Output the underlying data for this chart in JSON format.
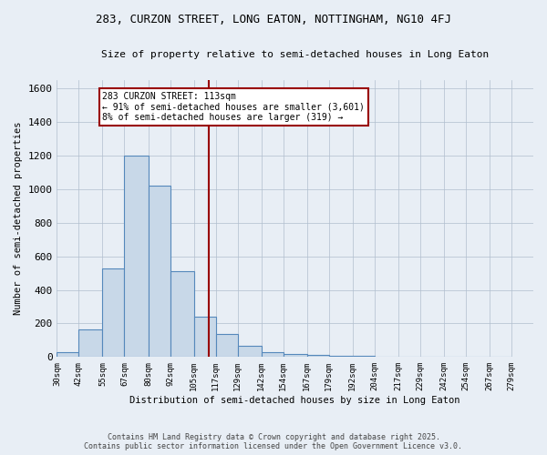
{
  "title1": "283, CURZON STREET, LONG EATON, NOTTINGHAM, NG10 4FJ",
  "title2": "Size of property relative to semi-detached houses in Long Eaton",
  "xlabel": "Distribution of semi-detached houses by size in Long Eaton",
  "ylabel": "Number of semi-detached properties",
  "bin_labels": [
    "30sqm",
    "42sqm",
    "55sqm",
    "67sqm",
    "80sqm",
    "92sqm",
    "105sqm",
    "117sqm",
    "129sqm",
    "142sqm",
    "154sqm",
    "167sqm",
    "179sqm",
    "192sqm",
    "204sqm",
    "217sqm",
    "229sqm",
    "242sqm",
    "254sqm",
    "267sqm",
    "279sqm"
  ],
  "bar_values": [
    30,
    165,
    530,
    1200,
    1020,
    510,
    240,
    140,
    65,
    30,
    20,
    10,
    8,
    5,
    3,
    2,
    1,
    1,
    0,
    0
  ],
  "bin_edges": [
    30,
    42,
    55,
    67,
    80,
    92,
    105,
    117,
    129,
    142,
    154,
    167,
    179,
    192,
    204,
    217,
    229,
    242,
    254,
    267,
    279
  ],
  "bar_color": "#c8d8e8",
  "bar_edge_color": "#5588bb",
  "vertical_line_x": 113,
  "vertical_line_color": "#990000",
  "annotation_line1": "283 CURZON STREET: 113sqm",
  "annotation_line2": "← 91% of semi-detached houses are smaller (3,601)",
  "annotation_line3": "8% of semi-detached houses are larger (319) →",
  "annotation_box_color": "#ffffff",
  "annotation_box_edge": "#990000",
  "ylim": [
    0,
    1650
  ],
  "yticks": [
    0,
    200,
    400,
    600,
    800,
    1000,
    1200,
    1400,
    1600
  ],
  "footer1": "Contains HM Land Registry data © Crown copyright and database right 2025.",
  "footer2": "Contains public sector information licensed under the Open Government Licence v3.0.",
  "bg_color": "#e8eef5",
  "plot_bg_color": "#e8eef5",
  "grid_color": "#b0bece",
  "spine_color": "#b0bece"
}
